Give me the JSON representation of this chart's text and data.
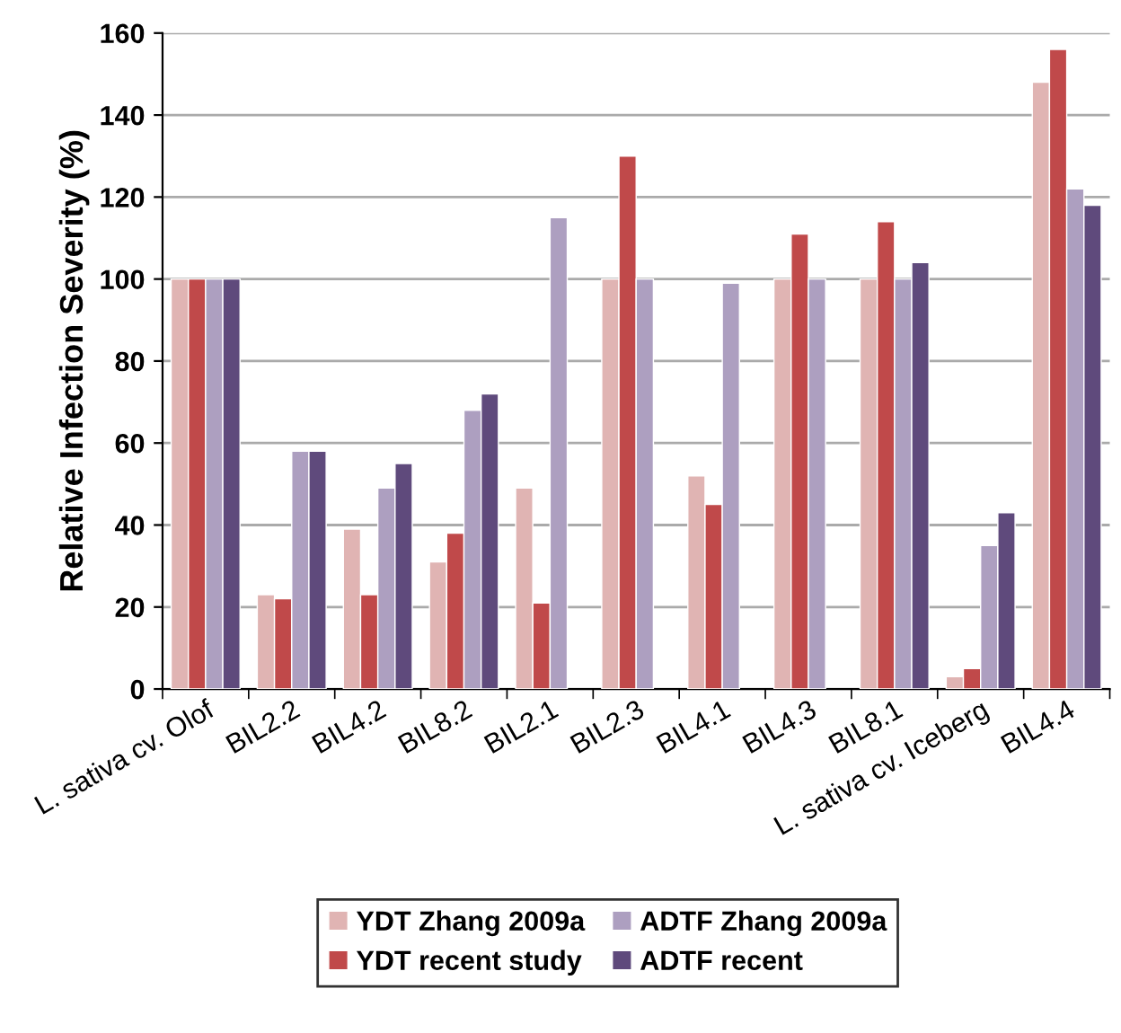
{
  "chart_data": {
    "type": "bar",
    "ylabel": "Relative Infection Severity (%)",
    "categories": [
      "L. sativa cv. Olof",
      "BIL2.2",
      "BIL4.2",
      "BIL8.2",
      "BIL2.1",
      "BIL2.3",
      "BIL4.1",
      "BIL4.3",
      "BIL8.1",
      "L. sativa cv. Iceberg",
      "BIL4.4"
    ],
    "series": [
      {
        "name": "YDT Zhang 2009a",
        "color": "#e0b4b3",
        "values": [
          100,
          23,
          39,
          31,
          49,
          100,
          52,
          100,
          100,
          3,
          148
        ]
      },
      {
        "name": "YDT recent study",
        "color": "#c0494a",
        "values": [
          100,
          22,
          23,
          38,
          21,
          130,
          45,
          111,
          114,
          5,
          156
        ]
      },
      {
        "name": "ADTF Zhang 2009a",
        "color": "#ad9fc0",
        "values": [
          100,
          58,
          49,
          68,
          115,
          100,
          99,
          100,
          100,
          35,
          122
        ]
      },
      {
        "name": "ADTF recent",
        "color": "#5f4a7c",
        "values": [
          100,
          58,
          55,
          72,
          null,
          null,
          null,
          null,
          104,
          43,
          118
        ]
      }
    ],
    "ylim": [
      0,
      160
    ],
    "yticks": [
      0,
      20,
      40,
      60,
      80,
      100,
      120,
      140,
      160
    ],
    "grid": "y",
    "legend": "bottom"
  }
}
